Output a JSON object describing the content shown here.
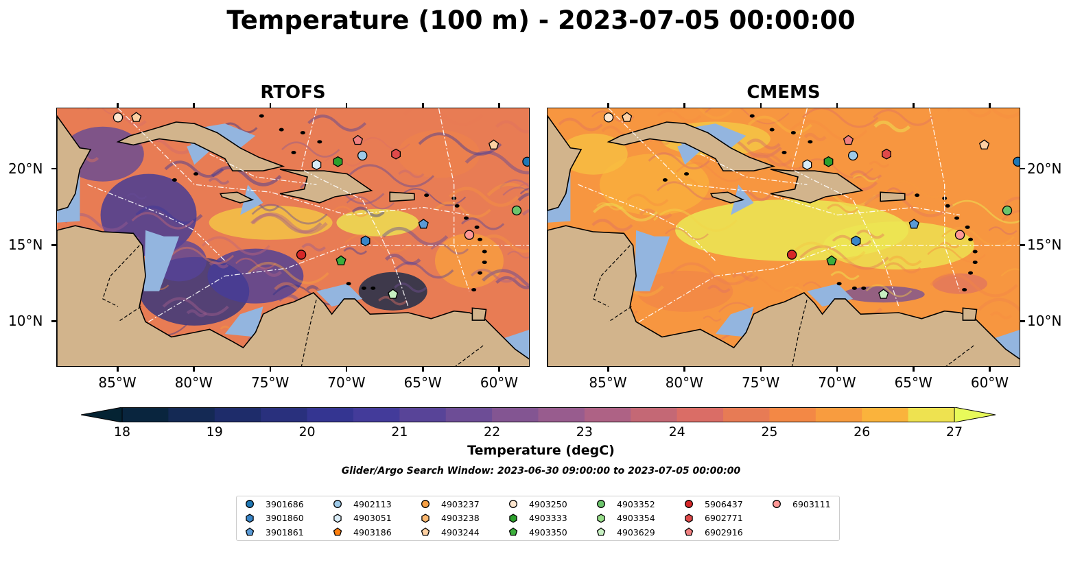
{
  "title": "Temperature (100 m) - 2023-07-05 00:00:00",
  "panels": [
    {
      "name": "RTOFS",
      "field": "rtofs"
    },
    {
      "name": "CMEMS",
      "field": "cmems"
    }
  ],
  "map_extent": {
    "lon": [
      -89,
      -58
    ],
    "lat": [
      7,
      24
    ]
  },
  "x_ticks": [
    "85°W",
    "80°W",
    "75°W",
    "70°W",
    "65°W",
    "60°W"
  ],
  "x_tick_values": [
    -85,
    -80,
    -75,
    -70,
    -65,
    -60
  ],
  "y_ticks": [
    "20°N",
    "15°N",
    "10°N"
  ],
  "y_tick_values": [
    20,
    15,
    10
  ],
  "colorbar": {
    "label": "Temperature (degC)",
    "ticks": [
      "18",
      "19",
      "20",
      "21",
      "22",
      "23",
      "24",
      "25",
      "26",
      "27"
    ],
    "min": 18,
    "max": 27,
    "step": 0.5,
    "extend": "both",
    "colormap": "thermal"
  },
  "search_window": "Glider/Argo Search Window: 2023-06-30 09:00:00 to 2023-07-05 00:00:00",
  "colors": {
    "land": "#d2b48c",
    "shelf": "#93b5df",
    "deep": "#0d2035"
  },
  "legend": [
    {
      "id": "3901686",
      "marker": "circle",
      "color": "#1f77b4"
    },
    {
      "id": "3901860",
      "marker": "hexagon",
      "color": "#3a86c8"
    },
    {
      "id": "3901861",
      "marker": "pentagon",
      "color": "#5a9ad6"
    },
    {
      "id": "4902113",
      "marker": "circle",
      "color": "#9ecae9"
    },
    {
      "id": "4903051",
      "marker": "hexagon",
      "color": "#d9ecf7"
    },
    {
      "id": "4903186",
      "marker": "pentagon",
      "color": "#ff7f0e"
    },
    {
      "id": "4903237",
      "marker": "circle",
      "color": "#f7a044"
    },
    {
      "id": "4903238",
      "marker": "hexagon",
      "color": "#fdb870"
    },
    {
      "id": "4903244",
      "marker": "pentagon",
      "color": "#fdd0a2"
    },
    {
      "id": "4903250",
      "marker": "circle",
      "color": "#fde6cf"
    },
    {
      "id": "4903333",
      "marker": "hexagon",
      "color": "#2ca02c"
    },
    {
      "id": "4903350",
      "marker": "pentagon",
      "color": "#3cae3c"
    },
    {
      "id": "4903352",
      "marker": "circle",
      "color": "#6cc46c"
    },
    {
      "id": "4903354",
      "marker": "hexagon",
      "color": "#98df8a"
    },
    {
      "id": "4903629",
      "marker": "pentagon",
      "color": "#c7f0c2"
    },
    {
      "id": "5906437",
      "marker": "circle",
      "color": "#d62728"
    },
    {
      "id": "6902771",
      "marker": "hexagon",
      "color": "#e04a4a"
    },
    {
      "id": "6902916",
      "marker": "pentagon",
      "color": "#f08080"
    },
    {
      "id": "6903111",
      "marker": "circle",
      "color": "#ff9896"
    }
  ],
  "platforms": [
    {
      "id": "3901686",
      "lon": -58.2,
      "lat": 20.5
    },
    {
      "id": "3901860",
      "lon": -68.8,
      "lat": 15.3
    },
    {
      "id": "3901861",
      "lon": -65.0,
      "lat": 16.4
    },
    {
      "id": "4902113",
      "lon": -69.0,
      "lat": 20.9
    },
    {
      "id": "4903051",
      "lon": -72.0,
      "lat": 20.3
    },
    {
      "id": "4903250",
      "lon": -85.0,
      "lat": 23.4
    },
    {
      "id": "4903244",
      "lon": -83.8,
      "lat": 23.4
    },
    {
      "id": "4903244",
      "lon": -60.4,
      "lat": 21.6
    },
    {
      "id": "4903333",
      "lon": -70.6,
      "lat": 20.5
    },
    {
      "id": "4903350",
      "lon": -70.4,
      "lat": 14.0
    },
    {
      "id": "4903352",
      "lon": -58.9,
      "lat": 17.3
    },
    {
      "id": "4903629",
      "lon": -67.0,
      "lat": 11.8
    },
    {
      "id": "5906437",
      "lon": -73.0,
      "lat": 14.4
    },
    {
      "id": "6902771",
      "lon": -66.8,
      "lat": 21.0
    },
    {
      "id": "6902916",
      "lon": -69.3,
      "lat": 21.9
    },
    {
      "id": "6903111",
      "lon": -62.0,
      "lat": 15.7
    }
  ]
}
